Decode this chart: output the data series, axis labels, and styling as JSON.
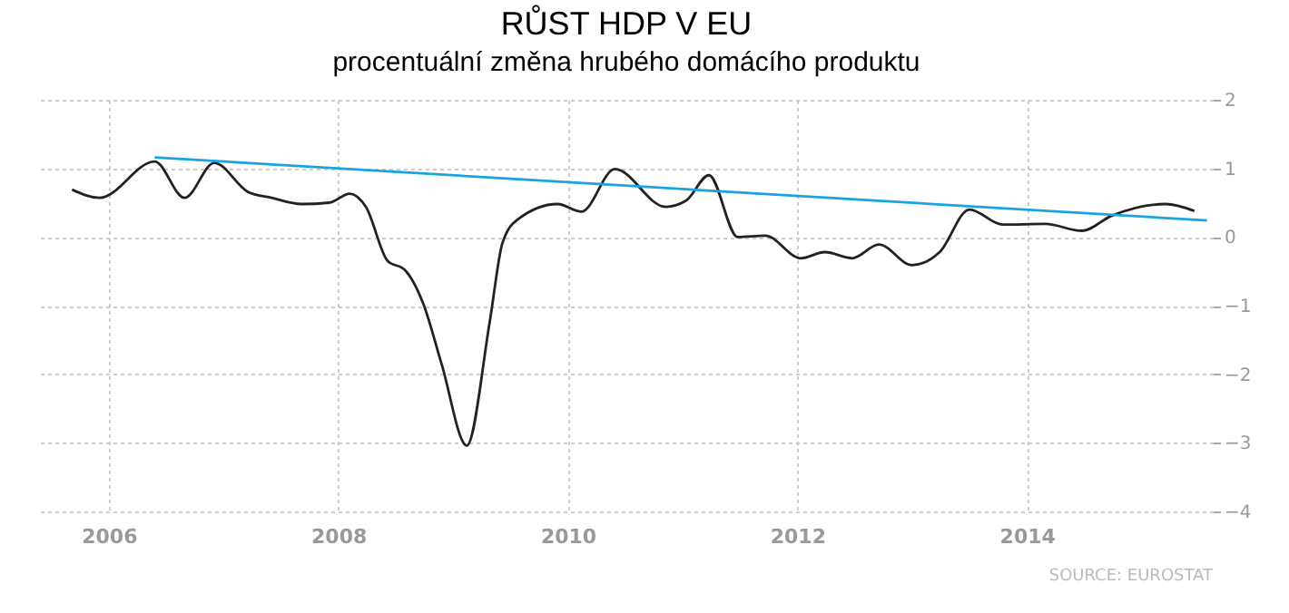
{
  "chart_data": {
    "type": "line",
    "title": "RŮST HDP V EU",
    "subtitle": "procentuální změna hrubého domácího produktu",
    "series": [
      {
        "color": "#222222",
        "x": [
          2005.68,
          2005.92,
          2006.4,
          2006.66,
          2006.92,
          2007.21,
          2007.42,
          2007.68,
          2007.92,
          2008.1,
          2008.24,
          2008.43,
          2008.58,
          2008.74,
          2008.9,
          2009.12,
          2009.32,
          2009.43,
          2009.56,
          2009.91,
          2010.12,
          2010.41,
          2010.85,
          2011.03,
          2011.23,
          2011.48,
          2011.72,
          2012.03,
          2012.24,
          2012.48,
          2012.71,
          2013.0,
          2013.24,
          2013.5,
          2013.79,
          2014.16,
          2014.48,
          2014.74,
          2015.21,
          2015.46
        ],
        "values": [
          0.69,
          0.57,
          1.1,
          0.57,
          1.08,
          0.66,
          0.57,
          0.48,
          0.5,
          0.63,
          0.44,
          -0.35,
          -0.48,
          -0.97,
          -1.85,
          -3.04,
          -1.23,
          -0.09,
          0.25,
          0.48,
          0.37,
          0.99,
          0.44,
          0.53,
          0.9,
          0.0,
          0.02,
          -0.31,
          -0.22,
          -0.31,
          -0.11,
          -0.41,
          -0.22,
          0.4,
          0.18,
          0.19,
          0.09,
          0.31,
          0.48,
          0.38
        ]
      },
      {
        "type": "line",
        "color": "#1aa3e0",
        "x": [
          2006.4,
          2015.57
        ],
        "values": [
          1.16,
          0.24
        ]
      }
    ],
    "xlim": [
      2005.4,
      2015.62
    ],
    "xticks": [
      2006,
      2008,
      2010,
      2012,
      2014
    ],
    "ylim": [
      -4,
      2
    ],
    "yticks": [
      -4,
      -3,
      -2,
      -1,
      0,
      1,
      2
    ],
    "grid": true,
    "annotations": [
      "SOURCE: EUROSTAT"
    ]
  }
}
